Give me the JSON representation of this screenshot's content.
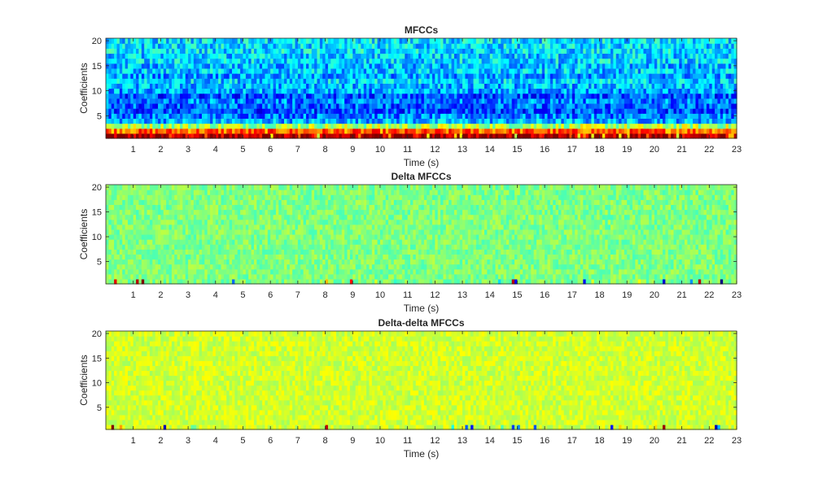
{
  "chart_data": [
    {
      "type": "heatmap",
      "title": "MFCCs",
      "xlabel": "Time (s)",
      "ylabel": "Coefficients",
      "xlim": [
        0,
        23
      ],
      "ylim": [
        0.5,
        20.5
      ],
      "xticks": [
        1,
        2,
        3,
        4,
        5,
        6,
        7,
        8,
        9,
        10,
        11,
        12,
        13,
        14,
        15,
        16,
        17,
        18,
        19,
        20,
        21,
        22,
        23
      ],
      "yticks": [
        5,
        10,
        15,
        20
      ],
      "colormap": "jet",
      "row_level_profile": [
        0.96,
        0.78,
        0.55,
        0.3,
        0.25,
        0.2,
        0.22,
        0.25,
        0.2,
        0.28,
        0.3,
        0.33,
        0.28,
        0.32,
        0.3,
        0.34,
        0.33,
        0.35,
        0.34,
        0.35
      ],
      "variation": 0.12
    },
    {
      "type": "heatmap",
      "title": "Delta MFCCs",
      "xlabel": "Time (s)",
      "ylabel": "Coefficients",
      "xlim": [
        0,
        23
      ],
      "ylim": [
        0.5,
        20.5
      ],
      "xticks": [
        1,
        2,
        3,
        4,
        5,
        6,
        7,
        8,
        9,
        10,
        11,
        12,
        13,
        14,
        15,
        16,
        17,
        18,
        19,
        20,
        21,
        22,
        23
      ],
      "yticks": [
        5,
        10,
        15,
        20
      ],
      "colormap": "jet",
      "row_level_profile": [
        0.5,
        0.5,
        0.5,
        0.5,
        0.5,
        0.5,
        0.5,
        0.5,
        0.5,
        0.5,
        0.5,
        0.5,
        0.5,
        0.5,
        0.5,
        0.5,
        0.5,
        0.5,
        0.5,
        0.5
      ],
      "variation": 0.06
    },
    {
      "type": "heatmap",
      "title": "Delta-delta MFCCs",
      "xlabel": "Time (s)",
      "ylabel": "Coefficients",
      "xlim": [
        0,
        23
      ],
      "ylim": [
        0.5,
        20.5
      ],
      "xticks": [
        1,
        2,
        3,
        4,
        5,
        6,
        7,
        8,
        9,
        10,
        11,
        12,
        13,
        14,
        15,
        16,
        17,
        18,
        19,
        20,
        21,
        22,
        23
      ],
      "yticks": [
        5,
        10,
        15,
        20
      ],
      "colormap": "jet",
      "row_level_profile": [
        0.58,
        0.58,
        0.58,
        0.58,
        0.58,
        0.58,
        0.58,
        0.58,
        0.58,
        0.58,
        0.58,
        0.58,
        0.58,
        0.58,
        0.58,
        0.58,
        0.58,
        0.58,
        0.58,
        0.58
      ],
      "variation": 0.05
    }
  ]
}
